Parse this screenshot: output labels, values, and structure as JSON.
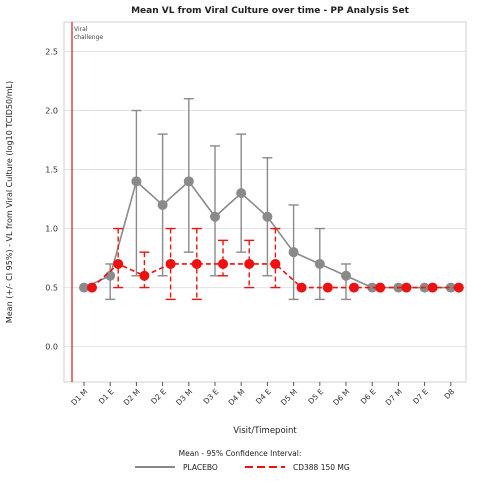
{
  "chart_data": {
    "type": "line",
    "title": "Mean VL from Viral Culture over time - PP Analysis Set",
    "xlabel": "Visit/Timepoint",
    "ylabel": "Mean (+/- CI 95%) - VL from Viral Culture (log10 TCID50/mL)",
    "ylim": [
      -0.3,
      2.75
    ],
    "yticks": [
      0.0,
      0.5,
      1.0,
      1.5,
      2.0,
      2.5
    ],
    "ytick_labels": [
      "0.0",
      "0.5",
      "1.0",
      "1.5",
      "2.0",
      "2.5"
    ],
    "grid": true,
    "categories": [
      "D1 M",
      "D1 E",
      "D2 M",
      "D2 E",
      "D3 M",
      "D3 E",
      "D4 M",
      "D4 E",
      "D5 M",
      "D5 E",
      "D6 M",
      "D6 E",
      "D7 M",
      "D7 E",
      "D8"
    ],
    "reference_line": {
      "label": "Viral challenge",
      "color": "#cc2222"
    },
    "legend_title": "Mean - 95% Confidence Interval:",
    "legend_position": "bottom",
    "series": [
      {
        "name": "PLACEBO",
        "color": "#8a8a8a",
        "style": "solid",
        "values": [
          0.5,
          0.6,
          1.4,
          1.2,
          1.4,
          1.1,
          1.3,
          1.1,
          0.8,
          0.7,
          0.6,
          0.5,
          0.5,
          0.5,
          0.5
        ],
        "lower": [
          0.5,
          0.4,
          0.6,
          0.6,
          0.8,
          0.6,
          0.8,
          0.6,
          0.4,
          0.4,
          0.4,
          0.5,
          0.5,
          0.5,
          0.5
        ],
        "upper": [
          0.5,
          0.7,
          2.0,
          1.8,
          2.1,
          1.7,
          1.8,
          1.6,
          1.2,
          1.0,
          0.7,
          0.5,
          0.5,
          0.5,
          0.5
        ]
      },
      {
        "name": "CD388 150 MG",
        "color": "#ee1111",
        "style": "dashed",
        "values": [
          0.5,
          0.7,
          0.6,
          0.7,
          0.7,
          0.7,
          0.7,
          0.7,
          0.5,
          0.5,
          0.5,
          0.5,
          0.5,
          0.5,
          0.5
        ],
        "lower": [
          0.5,
          0.5,
          0.5,
          0.4,
          0.4,
          0.6,
          0.5,
          0.5,
          0.5,
          0.5,
          0.5,
          0.5,
          0.5,
          0.5,
          0.5
        ],
        "upper": [
          0.5,
          1.0,
          0.8,
          1.0,
          1.0,
          0.9,
          0.9,
          1.0,
          0.5,
          0.5,
          0.5,
          0.5,
          0.5,
          0.5,
          0.5
        ]
      }
    ]
  }
}
